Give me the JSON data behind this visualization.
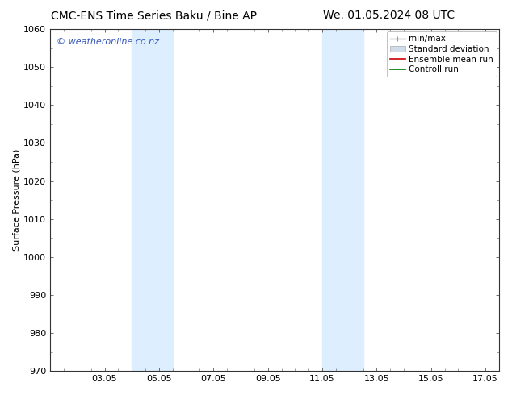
{
  "title_left": "CMC-ENS Time Series Baku / Bine AP",
  "title_right": "We. 01.05.2024 08 UTC",
  "ylabel": "Surface Pressure (hPa)",
  "ylim": [
    970,
    1060
  ],
  "yticks": [
    970,
    980,
    990,
    1000,
    1010,
    1020,
    1030,
    1040,
    1050,
    1060
  ],
  "xlim": [
    1.0,
    17.5
  ],
  "xtick_labels": [
    "03.05",
    "05.05",
    "07.05",
    "09.05",
    "11.05",
    "13.05",
    "15.05",
    "17.05"
  ],
  "xtick_positions": [
    3,
    5,
    7,
    9,
    11,
    13,
    15,
    17
  ],
  "shaded_regions": [
    {
      "xmin": 4.0,
      "xmax": 5.5,
      "color": "#ddeeff"
    },
    {
      "xmin": 11.0,
      "xmax": 12.5,
      "color": "#ddeeff"
    }
  ],
  "watermark_text": "© weatheronline.co.nz",
  "watermark_color": "#3355bb",
  "watermark_fontsize": 8,
  "background_color": "#ffffff",
  "legend_labels": [
    "min/max",
    "Standard deviation",
    "Ensemble mean run",
    "Controll run"
  ],
  "legend_colors_line": [
    "#999999",
    "#bbbbbb",
    "#cc0000",
    "#007700"
  ],
  "legend_colors_fill": [
    "#999999",
    "#cccccc",
    "#cc0000",
    "#007700"
  ],
  "title_fontsize": 10,
  "axis_label_fontsize": 8,
  "tick_fontsize": 8,
  "legend_fontsize": 7.5
}
